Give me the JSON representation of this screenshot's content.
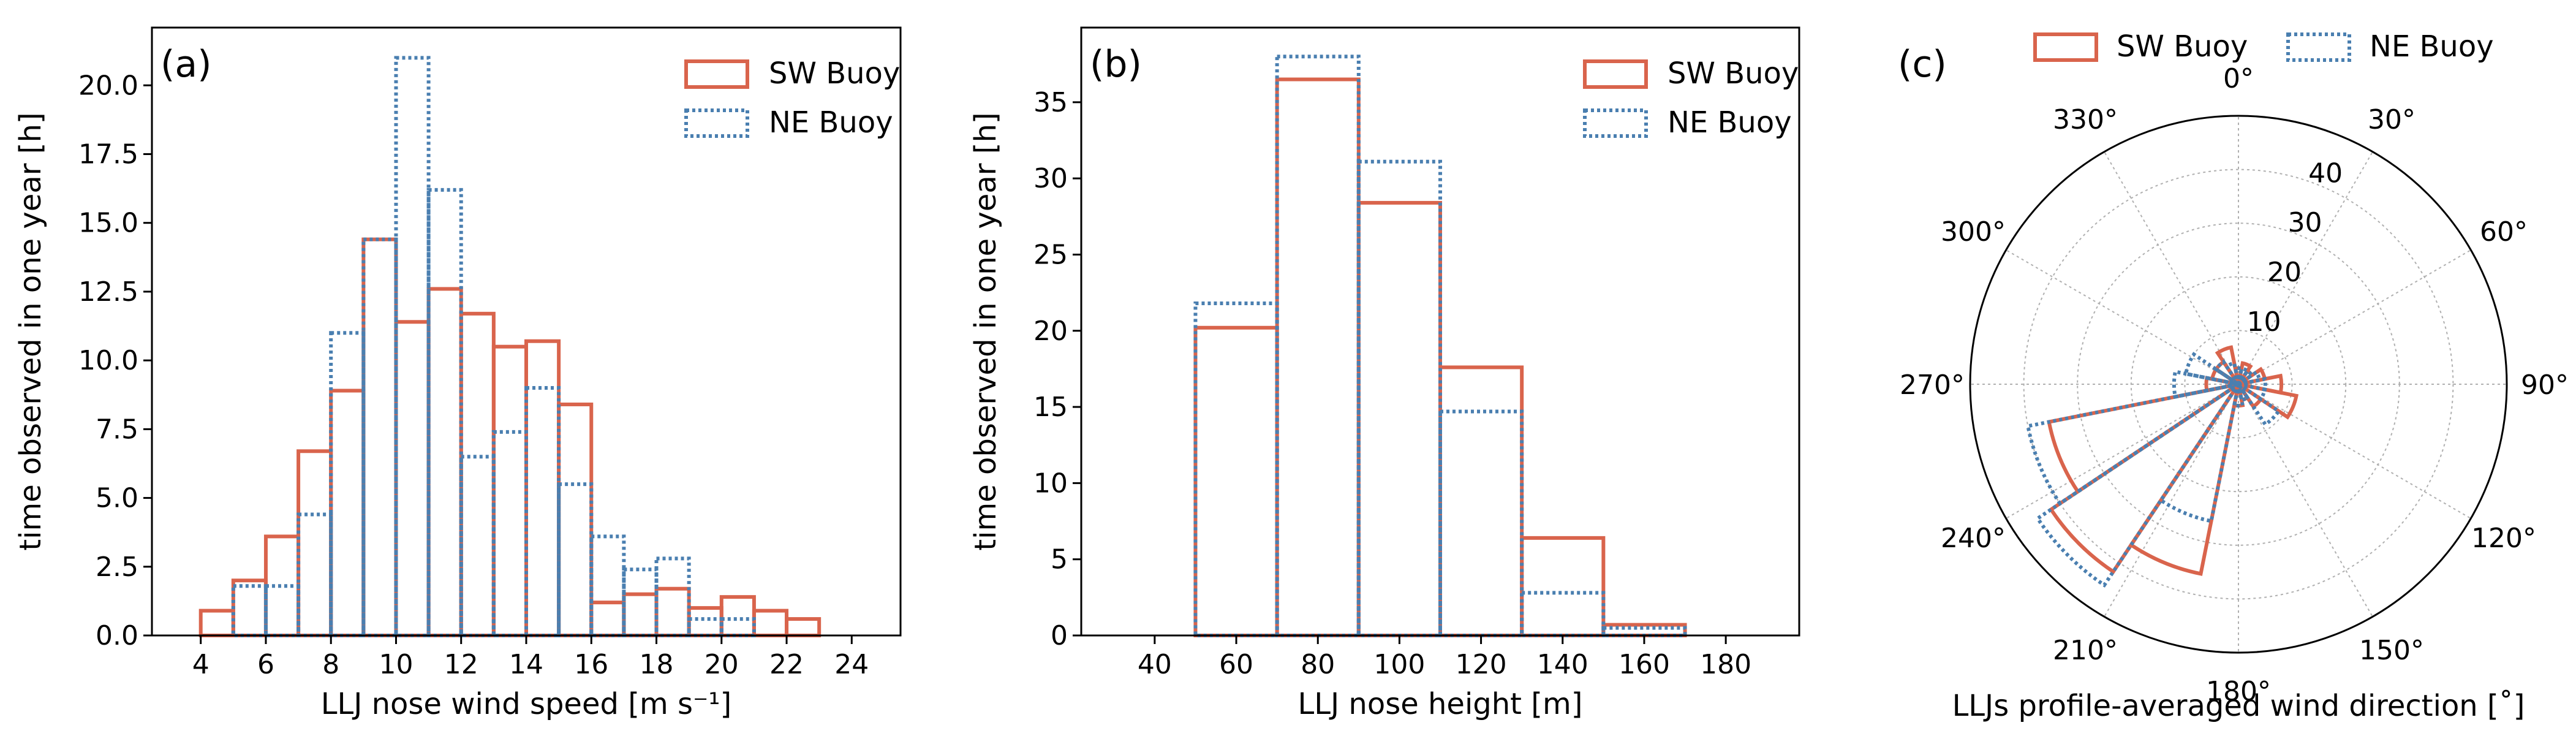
{
  "colors": {
    "sw": "#d9644c",
    "ne": "#4a7fb0"
  },
  "chart_data": [
    {
      "id": "a",
      "type": "bar",
      "panel_label": "(a)",
      "xlabel": "LLJ nose wind speed [m s⁻¹]",
      "ylabel": "time observed in one year [h]",
      "xlim": [
        2.5,
        25.5
      ],
      "ylim": [
        0,
        22.1
      ],
      "xticks": [
        4,
        6,
        8,
        10,
        12,
        14,
        16,
        18,
        20,
        22,
        24
      ],
      "xtick_labels": [
        "4",
        "6",
        "8",
        "10",
        "12",
        "14",
        "16",
        "18",
        "20",
        "22",
        "24"
      ],
      "yticks": [
        0,
        2.5,
        5,
        7.5,
        10,
        12.5,
        15,
        17.5,
        20
      ],
      "ytick_labels": [
        "0.0",
        "2.5",
        "5.0",
        "7.5",
        "10.0",
        "12.5",
        "15.0",
        "17.5",
        "20.0"
      ],
      "bin_edges": [
        3,
        4,
        5,
        6,
        7,
        8,
        9,
        10,
        11,
        12,
        13,
        14,
        15,
        16,
        17,
        18,
        19,
        20,
        21,
        22,
        23,
        24,
        25
      ],
      "legend": {
        "placement": "top-right",
        "entries": [
          "SW Buoy",
          "NE Buoy"
        ]
      },
      "series": [
        {
          "name": "SW Buoy",
          "style": "solid",
          "values": [
            0,
            0.9,
            2.0,
            3.6,
            6.7,
            8.9,
            14.4,
            11.4,
            12.6,
            11.7,
            10.5,
            10.7,
            8.4,
            1.2,
            1.5,
            1.7,
            1.0,
            1.4,
            0.9,
            0.6,
            0,
            0
          ]
        },
        {
          "name": "NE Buoy",
          "style": "dotted",
          "values": [
            0,
            0,
            1.8,
            1.8,
            4.4,
            11.0,
            14.4,
            21.0,
            16.2,
            6.5,
            7.4,
            9.0,
            5.5,
            3.6,
            2.4,
            2.8,
            0.6,
            0.6,
            0,
            0,
            0,
            0
          ]
        }
      ]
    },
    {
      "id": "b",
      "type": "bar",
      "panel_label": "(b)",
      "xlabel": "LLJ nose height [m]",
      "ylabel": "time observed in one year [h]",
      "xlim": [
        22,
        198
      ],
      "ylim": [
        0,
        39.9
      ],
      "xticks": [
        40,
        60,
        80,
        100,
        120,
        140,
        160,
        180
      ],
      "xtick_labels": [
        "40",
        "60",
        "80",
        "100",
        "120",
        "140",
        "160",
        "180"
      ],
      "yticks": [
        0,
        5,
        10,
        15,
        20,
        25,
        30,
        35
      ],
      "ytick_labels": [
        "0",
        "5",
        "10",
        "15",
        "20",
        "25",
        "30",
        "35"
      ],
      "bin_edges": [
        30,
        50,
        70,
        90,
        110,
        130,
        150,
        170,
        190
      ],
      "legend": {
        "placement": "top-right",
        "entries": [
          "SW Buoy",
          "NE Buoy"
        ]
      },
      "series": [
        {
          "name": "SW Buoy",
          "style": "solid",
          "values": [
            0,
            20.2,
            36.5,
            28.4,
            17.6,
            6.4,
            0.7,
            0
          ]
        },
        {
          "name": "NE Buoy",
          "style": "dotted",
          "values": [
            0,
            21.8,
            38.0,
            31.1,
            14.7,
            2.8,
            0.5,
            0
          ]
        }
      ]
    },
    {
      "id": "c",
      "type": "polar-bar",
      "panel_label": "(c)",
      "xlabel": "LLJs profile-averaged wind direction [˚]",
      "rmax": 50,
      "rticks": [
        10,
        20,
        30,
        40
      ],
      "rtick_labels": [
        "10",
        "20",
        "30",
        "40"
      ],
      "angle_ticks": [
        0,
        30,
        60,
        90,
        120,
        150,
        180,
        210,
        240,
        270,
        300,
        330
      ],
      "angle_labels": [
        "0°",
        "30°",
        "60°",
        "90°",
        "120°",
        "150°",
        "180°",
        "210°",
        "240°",
        "270°",
        "300°",
        "330°"
      ],
      "sector_width_deg": 22.5,
      "sector_centers_deg": [
        0,
        22.5,
        45,
        67.5,
        90,
        112.5,
        135,
        157.5,
        180,
        202.5,
        225,
        247.5,
        270,
        292.5,
        315,
        337.5
      ],
      "legend": {
        "placement": "top",
        "entries": [
          "SW Buoy",
          "NE Buoy"
        ]
      },
      "series": [
        {
          "name": "SW Buoy",
          "style": "solid",
          "values": [
            3,
            4,
            3,
            5,
            8,
            11,
            5,
            3,
            4,
            36,
            42,
            36,
            6,
            5,
            5,
            7
          ]
        },
        {
          "name": "NE Buoy",
          "style": "dotted",
          "values": [
            3,
            3,
            3,
            4,
            5,
            5,
            9,
            3,
            4,
            26,
            45,
            40,
            12,
            10,
            5,
            4
          ]
        }
      ]
    }
  ]
}
